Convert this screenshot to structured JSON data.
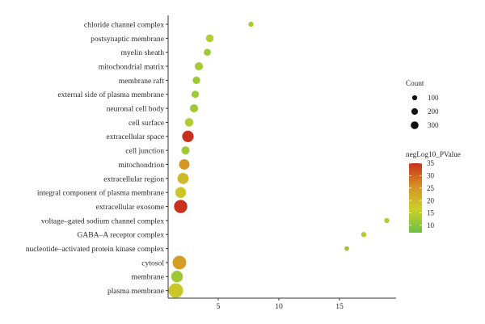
{
  "chart_data": {
    "type": "scatter",
    "title": "",
    "xlabel": "",
    "ylabel": "",
    "xlim": [
      1.0,
      19.8
    ],
    "xticks": [
      5,
      10,
      15
    ],
    "categories": [
      "chloride channel complex",
      "postsynaptic membrane",
      "myelin sheath",
      "mitochondrial matrix",
      "membrane raft",
      "external side of plasma membrane",
      "neuronal cell body",
      "cell surface",
      "extracellular space",
      "cell junction",
      "mitochondrion",
      "extracellular region",
      "integral component of plasma membrane",
      "extracellular exosome",
      "voltage–gated sodium channel complex",
      "GABA–A receptor complex",
      "nucleotide–activated protein kinase complex",
      "cytosol",
      "membrane",
      "plasma membrane"
    ],
    "points": [
      {
        "term": "chloride channel complex",
        "x": 7.7,
        "count": 15,
        "p": 13
      },
      {
        "term": "postsynaptic membrane",
        "x": 4.3,
        "count": 60,
        "p": 14
      },
      {
        "term": "myelin sheath",
        "x": 4.1,
        "count": 45,
        "p": 12
      },
      {
        "term": "mitochondrial matrix",
        "x": 3.4,
        "count": 70,
        "p": 13
      },
      {
        "term": "membrane raft",
        "x": 3.2,
        "count": 55,
        "p": 12
      },
      {
        "term": "external side of plasma membrane",
        "x": 3.1,
        "count": 50,
        "p": 12
      },
      {
        "term": "neuronal cell body",
        "x": 3.0,
        "count": 70,
        "p": 12
      },
      {
        "term": "cell surface",
        "x": 2.6,
        "count": 80,
        "p": 14
      },
      {
        "term": "extracellular space",
        "x": 2.5,
        "count": 180,
        "p": 35
      },
      {
        "term": "cell junction",
        "x": 2.3,
        "count": 70,
        "p": 12
      },
      {
        "term": "mitochondrion",
        "x": 2.2,
        "count": 140,
        "p": 25
      },
      {
        "term": "extracellular region",
        "x": 2.1,
        "count": 165,
        "p": 20
      },
      {
        "term": "integral component of plasma membrane",
        "x": 1.9,
        "count": 155,
        "p": 18
      },
      {
        "term": "extracellular exosome",
        "x": 1.9,
        "count": 260,
        "p": 35
      },
      {
        "term": "voltage–gated sodium channel complex",
        "x": 18.9,
        "count": 15,
        "p": 14
      },
      {
        "term": "GABA–A receptor complex",
        "x": 17.0,
        "count": 15,
        "p": 14
      },
      {
        "term": "nucleotide–activated protein kinase complex",
        "x": 15.6,
        "count": 10,
        "p": 12
      },
      {
        "term": "cytosol",
        "x": 1.8,
        "count": 280,
        "p": 24
      },
      {
        "term": "membrane",
        "x": 1.6,
        "count": 190,
        "p": 12
      },
      {
        "term": "plasma membrane",
        "x": 1.5,
        "count": 330,
        "p": 18
      }
    ],
    "size_legend": {
      "title": "Count",
      "values": [
        100,
        200,
        300
      ]
    },
    "color_legend": {
      "title": "negLog10_PValue",
      "min": 7,
      "max": 35,
      "ticks": [
        10,
        15,
        20,
        25,
        30,
        35
      ],
      "colors": [
        "#6cbf44",
        "#c9d22a",
        "#d69224",
        "#c8321d"
      ]
    },
    "grid": false,
    "legend_position": "right"
  }
}
